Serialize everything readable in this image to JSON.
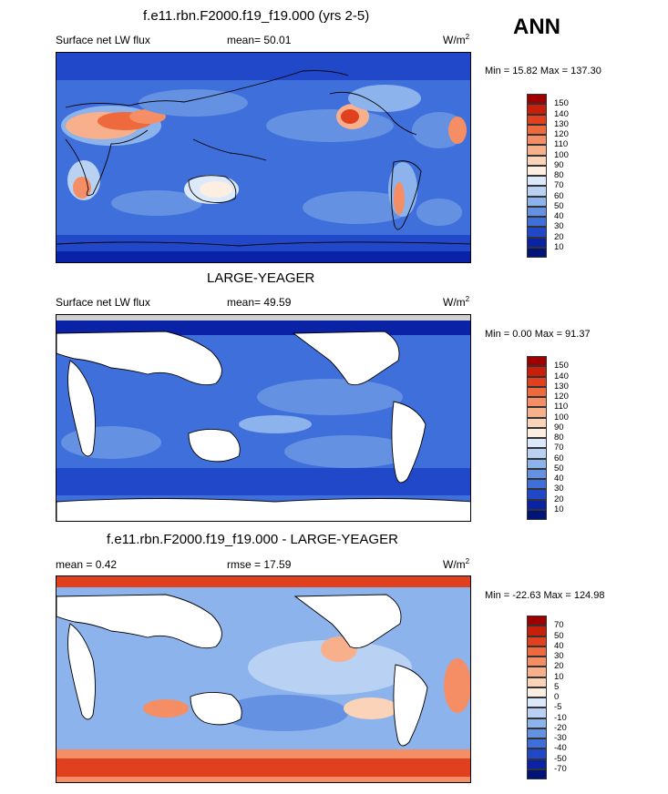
{
  "season": "ANN",
  "panels": [
    {
      "title": "f.e11.rbn.F2000.f19_f19.000 (yrs 2-5)",
      "left_label": "Surface net LW flux",
      "center_label": "mean=  50.01",
      "units_base": "W/m",
      "units_sup": "2",
      "range_text": "Min =  15.82 Max = 137.30",
      "colorbar": {
        "labels": [
          "150",
          "140",
          "130",
          "120",
          "110",
          "100",
          "90",
          "80",
          "70",
          "60",
          "50",
          "40",
          "30",
          "20",
          "10"
        ],
        "colors": [
          "#9e0000",
          "#c81e0a",
          "#e0401e",
          "#ee6a3c",
          "#f58e64",
          "#f8b08c",
          "#fbd3b8",
          "#fdeee2",
          "#dce9fa",
          "#b9d2f3",
          "#8db3ec",
          "#6591e2",
          "#3f6fdb",
          "#2148c8",
          "#0a22a6",
          "#001478"
        ]
      }
    },
    {
      "title": "LARGE-YEAGER",
      "left_label": "Surface net LW flux",
      "center_label": "mean=  49.59",
      "units_base": "W/m",
      "units_sup": "2",
      "range_text": "Min =   0.00 Max =  91.37",
      "colorbar": {
        "labels": [
          "150",
          "140",
          "130",
          "120",
          "110",
          "100",
          "90",
          "80",
          "70",
          "60",
          "50",
          "40",
          "30",
          "20",
          "10"
        ],
        "colors": [
          "#9e0000",
          "#c81e0a",
          "#e0401e",
          "#ee6a3c",
          "#f58e64",
          "#f8b08c",
          "#fbd3b8",
          "#fdeee2",
          "#dce9fa",
          "#b9d2f3",
          "#8db3ec",
          "#6591e2",
          "#3f6fdb",
          "#2148c8",
          "#0a22a6",
          "#001478"
        ]
      }
    },
    {
      "title": "f.e11.rbn.F2000.f19_f19.000 - LARGE-YEAGER",
      "left_label": "mean =  0.42",
      "center_label": "rmse =  17.59",
      "units_base": "W/m",
      "units_sup": "2",
      "range_text": "Min = -22.63 Max = 124.98",
      "colorbar": {
        "labels": [
          "70",
          "50",
          "40",
          "30",
          "20",
          "10",
          "5",
          "0",
          "-5",
          "-10",
          "-20",
          "-30",
          "-40",
          "-50",
          "-70"
        ],
        "colors": [
          "#9e0000",
          "#c81e0a",
          "#e0401e",
          "#ee6a3c",
          "#f58e64",
          "#f8b08c",
          "#fbd3b8",
          "#fdeee2",
          "#dce9fa",
          "#b9d2f3",
          "#8db3ec",
          "#6591e2",
          "#3f6fdb",
          "#2148c8",
          "#0a22a6",
          "#001478"
        ]
      }
    }
  ]
}
